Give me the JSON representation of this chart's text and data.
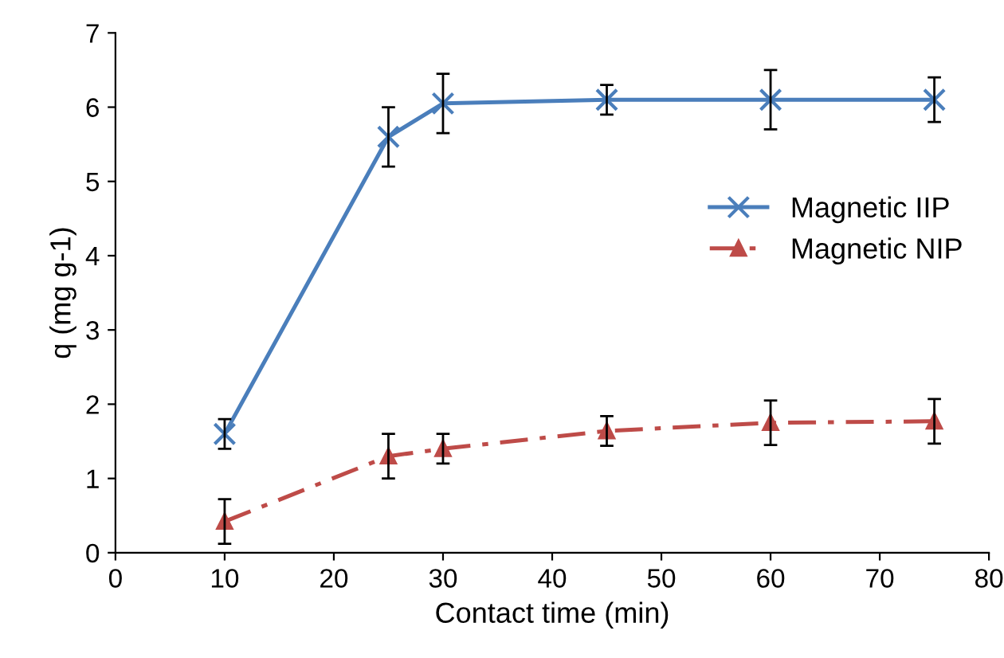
{
  "chart_data": {
    "type": "line",
    "xlabel": "Contact time (min)",
    "ylabel": "q (mg g-1)",
    "xlim": [
      0,
      80
    ],
    "xticks": [
      0,
      10,
      20,
      30,
      40,
      50,
      60,
      70,
      80
    ],
    "ylim": [
      0,
      7
    ],
    "yticks": [
      0,
      1,
      2,
      3,
      4,
      5,
      6,
      7
    ],
    "grid": false,
    "legend": "right",
    "series": [
      {
        "name": "Magnetic IIP",
        "color": "#4a7ebb",
        "x": [
          10,
          25,
          30,
          45,
          60,
          75
        ],
        "values": [
          1.6,
          5.6,
          6.05,
          6.1,
          6.1,
          6.1
        ],
        "errors": [
          0.2,
          0.4,
          0.4,
          0.2,
          0.4,
          0.3
        ],
        "marker": "cross",
        "line_style": "solid"
      },
      {
        "name": "Magnetic NIP",
        "color": "#be4b48",
        "x": [
          10,
          25,
          30,
          45,
          60,
          75
        ],
        "values": [
          0.42,
          1.3,
          1.4,
          1.64,
          1.75,
          1.77
        ],
        "errors": [
          0.3,
          0.3,
          0.2,
          0.2,
          0.3,
          0.3
        ],
        "marker": "triangle",
        "line_style": "dashed"
      }
    ]
  }
}
